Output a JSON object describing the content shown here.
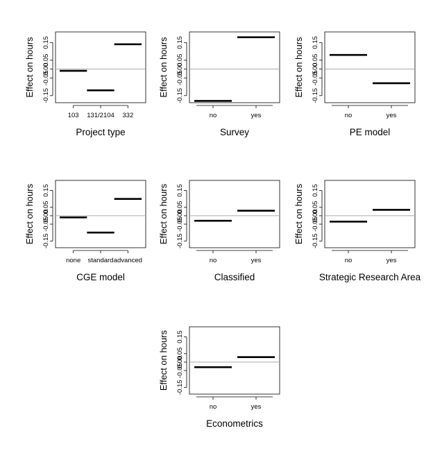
{
  "chart_data": [
    {
      "type": "line",
      "xlabel": "Project type",
      "ylabel": "Effect on hours",
      "categories": [
        "103",
        "131/2104",
        "332"
      ],
      "values": [
        -0.01,
        -0.12,
        0.14
      ],
      "ylim": [
        -0.19,
        0.21
      ],
      "yticks": [
        "-0.15",
        "-0.05",
        "0.00",
        "0.05",
        "0.15"
      ],
      "ytick_values": [
        -0.15,
        -0.05,
        0.0,
        0.05,
        0.15
      ],
      "reference_line": 0
    },
    {
      "type": "line",
      "xlabel": "Survey",
      "ylabel": "Effect on hours",
      "categories": [
        "no",
        "yes"
      ],
      "values": [
        -0.18,
        0.18
      ],
      "ylim": [
        -0.19,
        0.21
      ],
      "yticks": [
        "-0.15",
        "-0.05",
        "0.00",
        "0.05",
        "0.15"
      ],
      "ytick_values": [
        -0.15,
        -0.05,
        0.0,
        0.05,
        0.15
      ],
      "reference_line": 0
    },
    {
      "type": "line",
      "xlabel": "PE model",
      "ylabel": "Effect on hours",
      "categories": [
        "no",
        "yes"
      ],
      "values": [
        0.08,
        -0.08
      ],
      "ylim": [
        -0.19,
        0.21
      ],
      "yticks": [
        "-0.15",
        "-0.05",
        "0.00",
        "0.05",
        "0.15"
      ],
      "ytick_values": [
        -0.15,
        -0.05,
        0.0,
        0.05,
        0.15
      ],
      "reference_line": 0
    },
    {
      "type": "line",
      "xlabel": "CGE model",
      "ylabel": "Effect on hours",
      "categories": [
        "none",
        "standard",
        "advanced"
      ],
      "values": [
        -0.01,
        -0.1,
        0.1
      ],
      "ylim": [
        -0.19,
        0.21
      ],
      "yticks": [
        "-0.15",
        "-0.05",
        "0.00",
        "0.05",
        "0.15"
      ],
      "ytick_values": [
        -0.15,
        -0.05,
        0.0,
        0.05,
        0.15
      ],
      "reference_line": 0
    },
    {
      "type": "line",
      "xlabel": "Classified",
      "ylabel": "Effect on hours",
      "categories": [
        "no",
        "yes"
      ],
      "values": [
        -0.03,
        0.03
      ],
      "ylim": [
        -0.19,
        0.21
      ],
      "yticks": [
        "-0.15",
        "-0.05",
        "0.00",
        "0.05",
        "0.15"
      ],
      "ytick_values": [
        -0.15,
        -0.05,
        0.0,
        0.05,
        0.15
      ],
      "reference_line": 0
    },
    {
      "type": "line",
      "xlabel": "Strategic Research Area",
      "ylabel": "Effect on hours",
      "categories": [
        "no",
        "yes"
      ],
      "values": [
        -0.035,
        0.035
      ],
      "ylim": [
        -0.19,
        0.21
      ],
      "yticks": [
        "-0.15",
        "-0.05",
        "0.00",
        "0.05",
        "0.15"
      ],
      "ytick_values": [
        -0.15,
        -0.05,
        0.0,
        0.05,
        0.15
      ],
      "reference_line": 0
    },
    {
      "type": "line",
      "xlabel": "Econometrics",
      "ylabel": "Effect on hours",
      "categories": [
        "no",
        "yes"
      ],
      "values": [
        -0.03,
        0.03
      ],
      "ylim": [
        -0.19,
        0.21
      ],
      "yticks": [
        "-0.15",
        "-0.05",
        "0.00",
        "0.05",
        "0.15"
      ],
      "ytick_values": [
        -0.15,
        -0.05,
        0.0,
        0.05,
        0.15
      ],
      "reference_line": 0
    }
  ]
}
